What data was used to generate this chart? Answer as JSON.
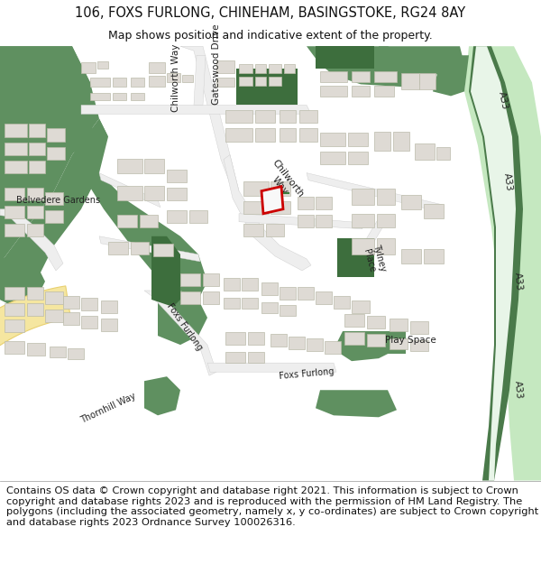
{
  "title_line1": "106, FOXS FURLONG, CHINEHAM, BASINGSTOKE, RG24 8AY",
  "title_line2": "Map shows position and indicative extent of the property.",
  "footer_text": "Contains OS data © Crown copyright and database right 2021. This information is subject to Crown copyright and database rights 2023 and is reproduced with the permission of HM Land Registry. The polygons (including the associated geometry, namely x, y co-ordinates) are subject to Crown copyright and database rights 2023 Ordnance Survey 100026316.",
  "bg_color": "#ffffff",
  "map_bg": "#f7f6f2",
  "green_color": "#5f9060",
  "road_color": "#eeeeee",
  "building_color": "#dedad4",
  "dark_green": "#3d6e3d",
  "a33_green_dark": "#4a7a4a",
  "a33_green_light": "#c5e8c0",
  "road_yellow": "#f5e6a0",
  "road_yellow_border": "#e8d070",
  "red_outline": "#cc0000",
  "title_fontsize": 10.5,
  "subtitle_fontsize": 9,
  "footer_fontsize": 8.2,
  "label_fontsize": 7.5
}
